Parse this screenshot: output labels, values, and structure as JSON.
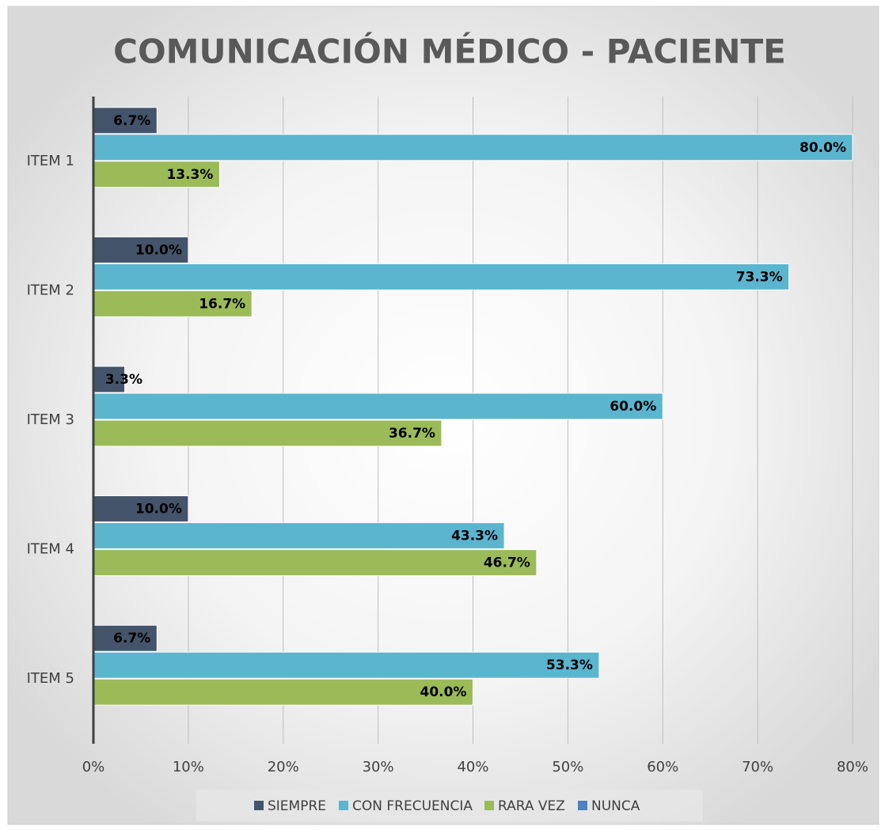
{
  "chart_data": {
    "type": "bar",
    "orientation": "horizontal",
    "title": "COMUNICACIÓN MÉDICO - PACIENTE",
    "categories": [
      "ITEM 1",
      "ITEM 2",
      "ITEM 3",
      "ITEM 4",
      "ITEM 5"
    ],
    "series": [
      {
        "name": "SIEMPRE",
        "color": "#44546a",
        "values": [
          6.7,
          10.0,
          3.3,
          10.0,
          6.7
        ],
        "value_labels": [
          "6.7%",
          "10.0%",
          "3.3%",
          "10.0%",
          "6.7%"
        ]
      },
      {
        "name": "CON FRECUENCIA",
        "color": "#5bb5cf",
        "values": [
          80.0,
          73.3,
          60.0,
          43.3,
          53.3
        ],
        "value_labels": [
          "80.0%",
          "73.3%",
          "60.0%",
          "43.3%",
          "53.3%"
        ]
      },
      {
        "name": "RARA VEZ",
        "color": "#9bbb59",
        "values": [
          13.3,
          16.7,
          36.7,
          46.7,
          40.0
        ],
        "value_labels": [
          "13.3%",
          "16.7%",
          "36.7%",
          "46.7%",
          "40.0%"
        ]
      },
      {
        "name": "NUNCA",
        "color": "#4f81bd",
        "values": [
          null,
          null,
          null,
          null,
          null
        ]
      }
    ],
    "xlim": [
      0,
      80
    ],
    "xticks": [
      {
        "value": 0,
        "label": "0%"
      },
      {
        "value": 10,
        "label": "10%"
      },
      {
        "value": 20,
        "label": "20%"
      },
      {
        "value": 30,
        "label": "30%"
      },
      {
        "value": 40,
        "label": "40%"
      },
      {
        "value": 50,
        "label": "50%"
      },
      {
        "value": 60,
        "label": "60%"
      },
      {
        "value": 70,
        "label": "70%"
      },
      {
        "value": 80,
        "label": "80%"
      }
    ],
    "grid": true,
    "legend": "bottom"
  }
}
